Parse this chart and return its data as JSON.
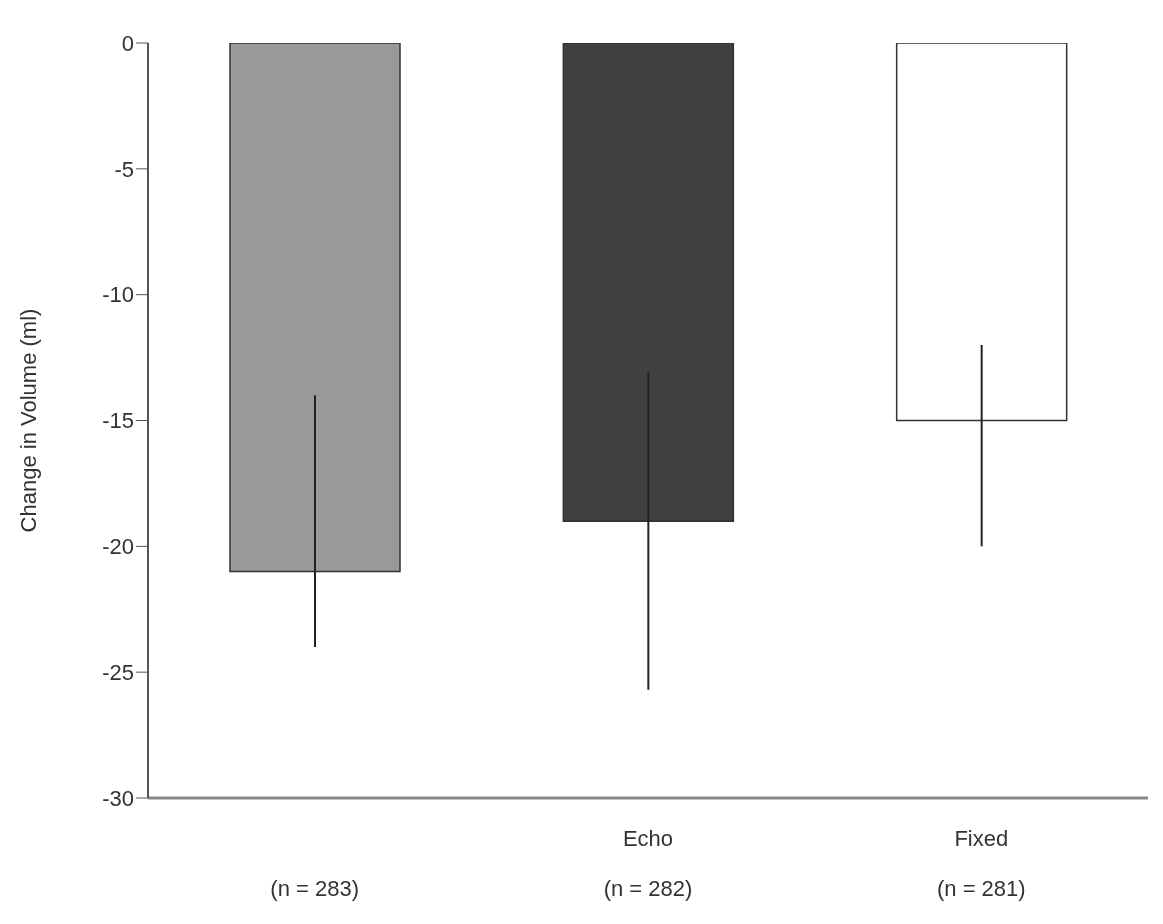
{
  "chart_data": {
    "type": "bar",
    "ylabel": "Change in Volume (ml)",
    "categories": [
      "(n = 283)",
      "Echo\n(n = 282)",
      "Fixed\n(n = 281)"
    ],
    "values": [
      -21,
      -19,
      -15
    ],
    "colors": [
      "#999999",
      "#404040",
      "#ffffff"
    ],
    "errors": [
      [
        -24,
        -14
      ],
      [
        -25.7,
        -13.1
      ],
      [
        -20,
        -12
      ]
    ],
    "ylim": [
      -30,
      0
    ],
    "yticks": [
      -30,
      -25,
      -20,
      -15,
      -10,
      -5,
      0
    ],
    "grid": false,
    "legend": false
  }
}
